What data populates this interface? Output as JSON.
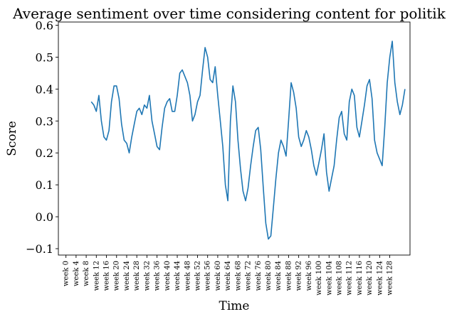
{
  "chart_data": {
    "type": "line",
    "title": "Average sentiment over time considering content for politik",
    "xlabel": "Time",
    "ylabel": "Score",
    "xlim": [
      -3,
      136
    ],
    "ylim": [
      -0.12,
      0.61
    ],
    "grid": false,
    "y_ticks": [
      -0.1,
      0.0,
      0.1,
      0.2,
      0.3,
      0.4,
      0.5,
      0.6
    ],
    "y_tick_labels": [
      "−0.1",
      "0.0",
      "0.1",
      "0.2",
      "0.3",
      "0.4",
      "0.5",
      "0.6"
    ],
    "x_ticks": [
      0,
      4,
      8,
      12,
      16,
      20,
      24,
      28,
      32,
      36,
      40,
      44,
      48,
      52,
      56,
      60,
      64,
      68,
      72,
      76,
      80,
      84,
      88,
      92,
      96,
      100,
      104,
      108,
      112,
      116,
      120,
      124,
      128
    ],
    "x_tick_labels": [
      "week 0",
      "week 4",
      "week 8",
      "week 12",
      "week 16",
      "week 20",
      "week 24",
      "week 28",
      "week 32",
      "week 36",
      "week 40",
      "week 44",
      "week 48",
      "week 52",
      "week 56",
      "week 60",
      "week 64",
      "week 68",
      "week 72",
      "week 76",
      "week 80",
      "week 84",
      "week 88",
      "week 92",
      "week 96",
      "week 100",
      "week 104",
      "week 108",
      "week 112",
      "week 116",
      "week 120",
      "week 124",
      "week 128"
    ],
    "series": [
      {
        "color": "#1f77b4",
        "x": [
          10,
          11,
          12,
          13,
          14,
          15,
          16,
          17,
          18,
          19,
          20,
          21,
          22,
          23,
          24,
          25,
          26,
          27,
          28,
          29,
          30,
          31,
          32,
          33,
          34,
          35,
          36,
          37,
          38,
          39,
          40,
          41,
          42,
          43,
          44,
          45,
          46,
          47,
          48,
          49,
          50,
          51,
          52,
          53,
          54,
          55,
          56,
          57,
          58,
          59,
          60,
          61,
          62,
          63,
          64,
          65,
          66,
          67,
          68,
          69,
          70,
          71,
          72,
          73,
          74,
          75,
          76,
          77,
          78,
          79,
          80,
          81,
          82,
          83,
          84,
          85,
          86,
          87,
          88,
          89,
          90,
          91,
          92,
          93,
          94,
          95,
          96,
          97,
          98,
          99,
          100,
          101,
          102,
          103,
          104,
          105,
          106,
          107,
          108,
          109,
          110,
          111,
          112,
          113,
          114,
          115,
          116,
          117,
          118,
          119,
          120,
          121,
          122,
          123,
          124,
          125,
          126,
          127,
          128,
          129,
          130,
          131,
          132,
          133,
          134
        ],
        "y": [
          0.36,
          0.35,
          0.33,
          0.38,
          0.3,
          0.25,
          0.24,
          0.27,
          0.36,
          0.41,
          0.41,
          0.37,
          0.29,
          0.24,
          0.23,
          0.2,
          0.25,
          0.29,
          0.33,
          0.34,
          0.32,
          0.35,
          0.34,
          0.38,
          0.3,
          0.26,
          0.22,
          0.21,
          0.28,
          0.34,
          0.36,
          0.37,
          0.33,
          0.33,
          0.38,
          0.45,
          0.46,
          0.44,
          0.42,
          0.38,
          0.3,
          0.32,
          0.36,
          0.38,
          0.46,
          0.53,
          0.5,
          0.43,
          0.42,
          0.47,
          0.38,
          0.3,
          0.22,
          0.1,
          0.05,
          0.3,
          0.41,
          0.36,
          0.24,
          0.15,
          0.08,
          0.05,
          0.09,
          0.16,
          0.22,
          0.27,
          0.28,
          0.21,
          0.09,
          -0.02,
          -0.07,
          -0.06,
          0.03,
          0.12,
          0.2,
          0.24,
          0.22,
          0.19,
          0.3,
          0.42,
          0.39,
          0.34,
          0.25,
          0.22,
          0.24,
          0.27,
          0.25,
          0.21,
          0.16,
          0.13,
          0.17,
          0.21,
          0.26,
          0.14,
          0.08,
          0.12,
          0.16,
          0.24,
          0.31,
          0.33,
          0.26,
          0.24,
          0.36,
          0.4,
          0.38,
          0.28,
          0.25,
          0.3,
          0.35,
          0.41,
          0.43,
          0.37,
          0.24,
          0.2,
          0.18,
          0.16,
          0.28,
          0.42,
          0.5,
          0.55,
          0.42,
          0.36,
          0.32,
          0.35,
          0.4
        ]
      }
    ]
  }
}
